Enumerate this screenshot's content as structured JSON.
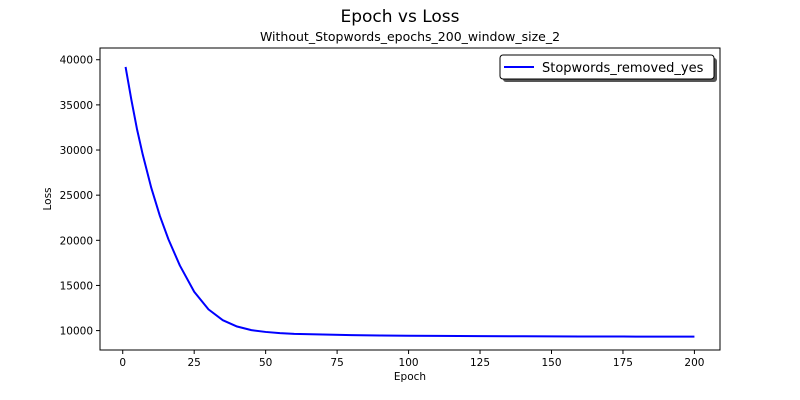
{
  "chart_data": {
    "type": "line",
    "title": "Epoch vs Loss",
    "subtitle": "Without_Stopwords_epochs_200_window_size_2",
    "xlabel": "Epoch",
    "ylabel": "Loss",
    "xlim": [
      -7.95,
      208.95
    ],
    "ylim": [
      7850,
      41300
    ],
    "xticks": [
      0,
      25,
      50,
      75,
      100,
      125,
      150,
      175,
      200
    ],
    "yticks": [
      10000,
      15000,
      20000,
      25000,
      30000,
      35000,
      40000
    ],
    "grid": false,
    "legend_position": "top-right",
    "series": [
      {
        "name": "Stopwords_removed_yes",
        "color": "#0000ff",
        "x": [
          1,
          3,
          5,
          7,
          10,
          13,
          16,
          20,
          25,
          30,
          35,
          40,
          45,
          50,
          55,
          60,
          70,
          80,
          90,
          100,
          110,
          125,
          140,
          150,
          160,
          175,
          190,
          200
        ],
        "y": [
          39200,
          35600,
          32300,
          29500,
          25800,
          22700,
          20100,
          17200,
          14300,
          12350,
          11150,
          10450,
          10050,
          9850,
          9720,
          9640,
          9560,
          9500,
          9460,
          9430,
          9410,
          9390,
          9370,
          9360,
          9350,
          9340,
          9330,
          9330
        ]
      }
    ]
  }
}
